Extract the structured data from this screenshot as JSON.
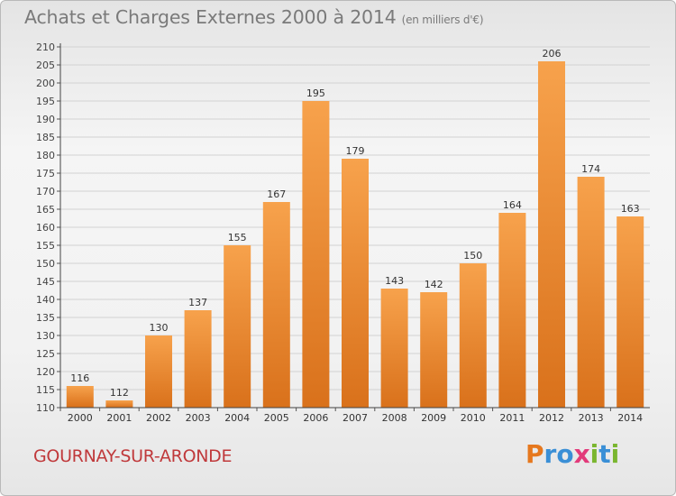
{
  "header": {
    "title": "Achats et Charges Externes 2000 à 2014",
    "unit": "(en milliers d'€)"
  },
  "footer": {
    "place": "GOURNAY-SUR-ARONDE",
    "brand": "Proxiti",
    "brand_colors": [
      "#e6781e",
      "#3a8fd6",
      "#3a8fd6",
      "#e23a7a",
      "#7ab62f",
      "#3a8fd6",
      "#7ab62f"
    ]
  },
  "colors": {
    "bar_light": "#f7a24c",
    "bar_dark": "#d9711b",
    "title": "#7a7a7a",
    "place": "#c0393b"
  },
  "chart_data": {
    "type": "bar",
    "categories": [
      "2000",
      "2001",
      "2002",
      "2003",
      "2004",
      "2005",
      "2006",
      "2007",
      "2008",
      "2009",
      "2010",
      "2011",
      "2012",
      "2013",
      "2014"
    ],
    "values": [
      116,
      112,
      130,
      137,
      155,
      167,
      195,
      179,
      143,
      142,
      150,
      164,
      206,
      174,
      163
    ],
    "ylim": [
      110,
      210
    ],
    "ytick_step": 5,
    "grid": true
  }
}
